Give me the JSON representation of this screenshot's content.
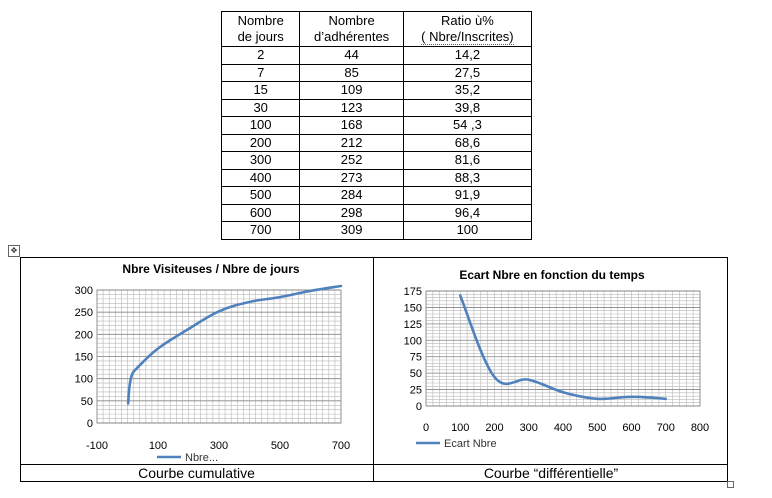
{
  "table": {
    "headers": [
      {
        "line1": "Nombre",
        "line2": "de jours"
      },
      {
        "line1": "Nombre",
        "line2": "d’adhérentes"
      },
      {
        "line1": "Ratio ù%",
        "line2": "( Nbre/Inscrites)"
      }
    ],
    "rows": [
      [
        "2",
        "44",
        "14,2"
      ],
      [
        "7",
        "85",
        "27,5"
      ],
      [
        "15",
        "109",
        "35,2"
      ],
      [
        "30",
        "123",
        "39,8"
      ],
      [
        "100",
        "168",
        "54 ,3"
      ],
      [
        "200",
        "212",
        "68,6"
      ],
      [
        "300",
        "252",
        "81,6"
      ],
      [
        "400",
        "273",
        "88,3"
      ],
      [
        "500",
        "284",
        "91,9"
      ],
      [
        "600",
        "298",
        "96,4"
      ],
      [
        "700",
        "309",
        "100"
      ]
    ]
  },
  "anchor_icon": "move-anchor-icon",
  "captions": {
    "left": "Courbe cumulative",
    "right": "Courbe “différentielle”"
  },
  "chart_data": [
    {
      "type": "line",
      "title": "Nbre Visiteuses / Nbre de jours",
      "xlabel": "",
      "ylabel": "",
      "x": [
        2,
        7,
        15,
        30,
        100,
        200,
        300,
        400,
        500,
        600,
        700
      ],
      "series": [
        {
          "name": "Nbre...",
          "values": [
            44,
            85,
            109,
            123,
            168,
            212,
            252,
            273,
            284,
            298,
            309
          ]
        }
      ],
      "xlim": [
        -100,
        700
      ],
      "ylim": [
        0,
        300
      ],
      "x_ticks": [
        "-100",
        "100",
        "300",
        "500",
        "700"
      ],
      "y_ticks": [
        "0",
        "50",
        "100",
        "150",
        "200",
        "250",
        "300"
      ],
      "grid": true,
      "legend": "bottom",
      "color": "#4f81bd"
    },
    {
      "type": "line",
      "title": "Ecart Nbre en fonction  du temps",
      "xlabel": "",
      "ylabel": "",
      "x": [
        100,
        200,
        300,
        400,
        500,
        600,
        700
      ],
      "series": [
        {
          "name": "Ecart Nbre",
          "values": [
            168,
            44,
            40,
            21,
            11,
            14,
            11
          ]
        }
      ],
      "xlim": [
        0,
        800
      ],
      "ylim": [
        0,
        175
      ],
      "x_ticks": [
        "0",
        "100",
        "200",
        "300",
        "400",
        "500",
        "600",
        "700",
        "800"
      ],
      "y_ticks": [
        "0",
        "25",
        "50",
        "75",
        "100",
        "125",
        "150",
        "175"
      ],
      "grid": true,
      "legend": "bottom-left",
      "color": "#4f81bd"
    }
  ]
}
